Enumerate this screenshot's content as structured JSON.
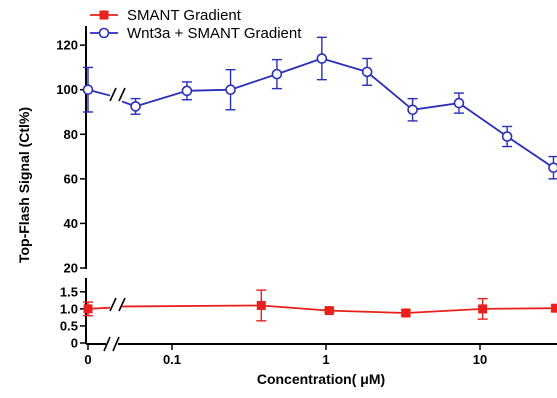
{
  "chart_data": {
    "type": "line",
    "title": "",
    "xlabel": "Concentration( μM)",
    "ylabel": "Top-Flash Signal (Ctl%)",
    "x_scale": "log",
    "x_ticks": [
      {
        "value": 0,
        "label": "0"
      },
      {
        "value": 0.1,
        "label": "0.1"
      },
      {
        "value": 1,
        "label": "1"
      },
      {
        "value": 10,
        "label": "10"
      }
    ],
    "y_ticks_upper": [
      20,
      40,
      60,
      80,
      100,
      120
    ],
    "y_ticks_lower": [
      "0",
      "0.5",
      "1.0",
      "1.5"
    ],
    "ylim_upper": [
      20,
      125
    ],
    "ylim_lower": [
      0,
      1.7
    ],
    "grid": false,
    "legend_position": "top-left",
    "series": [
      {
        "name": "SMANT Gradient",
        "color": "#e8211c",
        "marker": "filled-square",
        "points": [
          {
            "x": 0,
            "y": 1.0,
            "err": 0.2
          },
          {
            "x": 0.38,
            "y": 1.1,
            "err": 0.45
          },
          {
            "x": 1.05,
            "y": 0.95,
            "err": 0.05
          },
          {
            "x": 3.3,
            "y": 0.88,
            "err": 0.08
          },
          {
            "x": 10.4,
            "y": 1.0,
            "err": 0.3
          },
          {
            "x": 31,
            "y": 1.02,
            "err": 0.08
          }
        ]
      },
      {
        "name": "Wnt3a + SMANT Gradient",
        "color": "#2a2fb8",
        "marker": "open-circle",
        "points": [
          {
            "x": 0,
            "y": 100,
            "err": 10
          },
          {
            "x": 0.058,
            "y": 92.5,
            "err": 3.5
          },
          {
            "x": 0.125,
            "y": 99.5,
            "err": 4
          },
          {
            "x": 0.24,
            "y": 100,
            "err": 9
          },
          {
            "x": 0.48,
            "y": 107,
            "err": 6.5
          },
          {
            "x": 0.94,
            "y": 114,
            "err": 9.5
          },
          {
            "x": 1.85,
            "y": 108,
            "err": 6
          },
          {
            "x": 3.65,
            "y": 91,
            "err": 5
          },
          {
            "x": 7.3,
            "y": 94,
            "err": 4.5
          },
          {
            "x": 15,
            "y": 79,
            "err": 4.5
          },
          {
            "x": 30,
            "y": 65,
            "err": 5
          }
        ]
      }
    ]
  }
}
